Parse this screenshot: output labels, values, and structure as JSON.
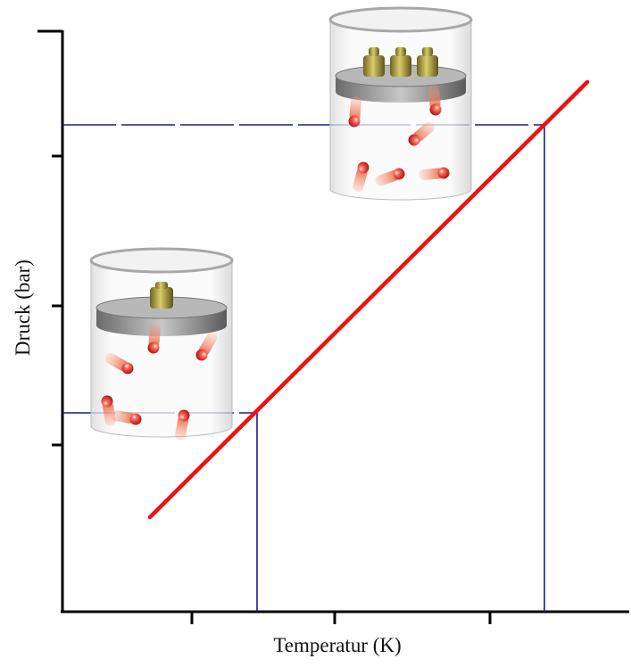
{
  "axes": {
    "y_label": "Druck (bar)",
    "x_label": "Temperatur (K)"
  }
}
